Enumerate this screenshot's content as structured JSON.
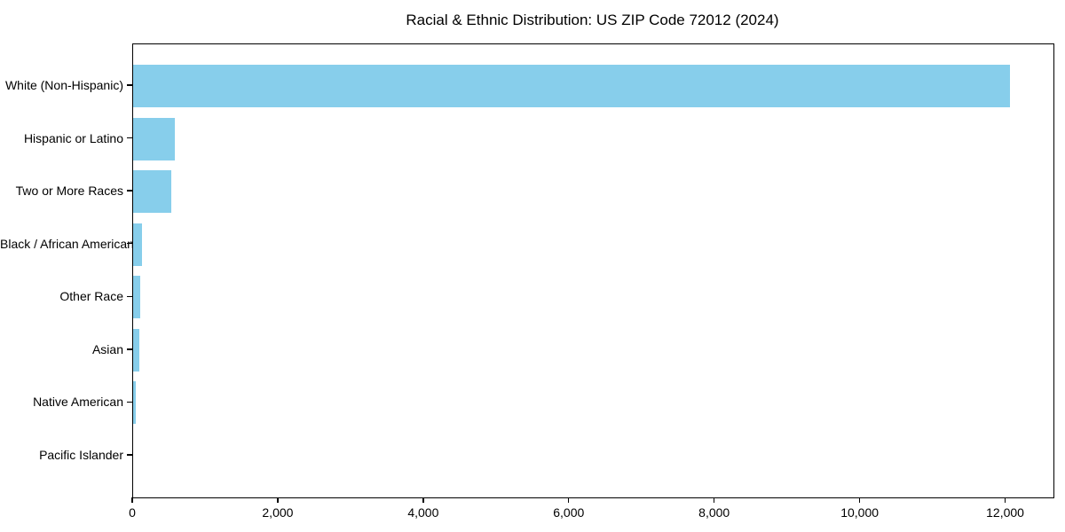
{
  "chart_data": {
    "type": "bar",
    "orientation": "horizontal",
    "title": "Racial & Ethnic Distribution: US ZIP Code 72012 (2024)",
    "categories": [
      "White (Non-Hispanic)",
      "Hispanic or Latino",
      "Two or More Races",
      "Black / African American",
      "Other Race",
      "Asian",
      "Native American",
      "Pacific Islander"
    ],
    "values": [
      12050,
      575,
      520,
      118,
      100,
      80,
      35,
      0
    ],
    "xlabel": "",
    "ylabel": "",
    "xlim": [
      0,
      12652
    ],
    "xticks": [
      0,
      2000,
      4000,
      6000,
      8000,
      10000,
      12000
    ],
    "xtick_labels": [
      "0",
      "2,000",
      "4,000",
      "6,000",
      "8,000",
      "10,000",
      "12,000"
    ],
    "bar_color": "#87CEEB",
    "axis_color": "#000000",
    "text_color": "#000000",
    "background_color": "#FFFFFF",
    "grid": false,
    "legend_position": "none"
  }
}
